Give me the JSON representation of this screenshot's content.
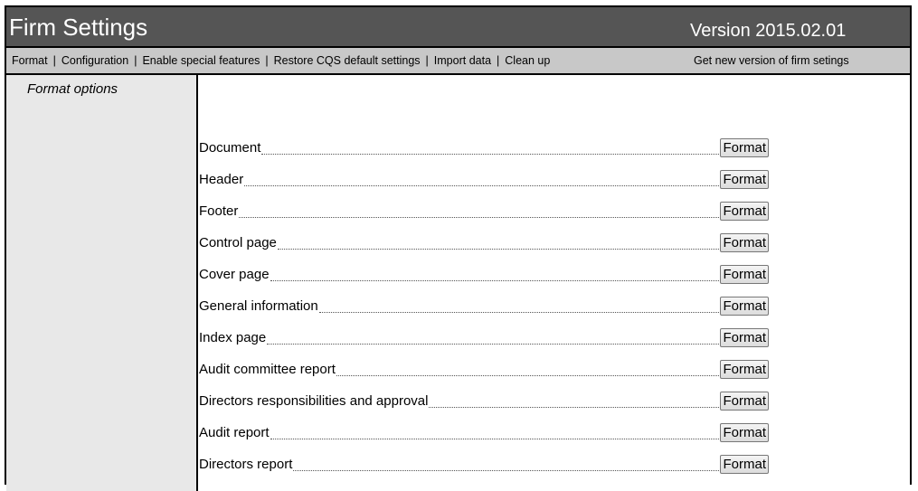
{
  "header": {
    "title": "Firm Settings",
    "version": "Version 2015.02.01"
  },
  "nav": {
    "links": [
      "Format",
      "Configuration",
      "Enable special features",
      "Restore CQS default settings",
      "Import data",
      "Clean up"
    ],
    "separator": "|",
    "get_new": "Get new version of firm setings"
  },
  "sidebar": {
    "title": "Format options"
  },
  "rows": [
    {
      "label": "Document",
      "button": "Format"
    },
    {
      "label": "Header",
      "button": "Format"
    },
    {
      "label": "Footer",
      "button": "Format"
    },
    {
      "label": "Control page",
      "button": "Format"
    },
    {
      "label": "Cover page",
      "button": "Format"
    },
    {
      "label": "General information",
      "button": "Format"
    },
    {
      "label": "Index page",
      "button": "Format"
    },
    {
      "label": "Audit committee report",
      "button": "Format"
    },
    {
      "label": "Directors responsibilities and approval",
      "button": "Format"
    },
    {
      "label": "Audit report",
      "button": "Format"
    },
    {
      "label": "Directors report",
      "button": "Format"
    }
  ]
}
